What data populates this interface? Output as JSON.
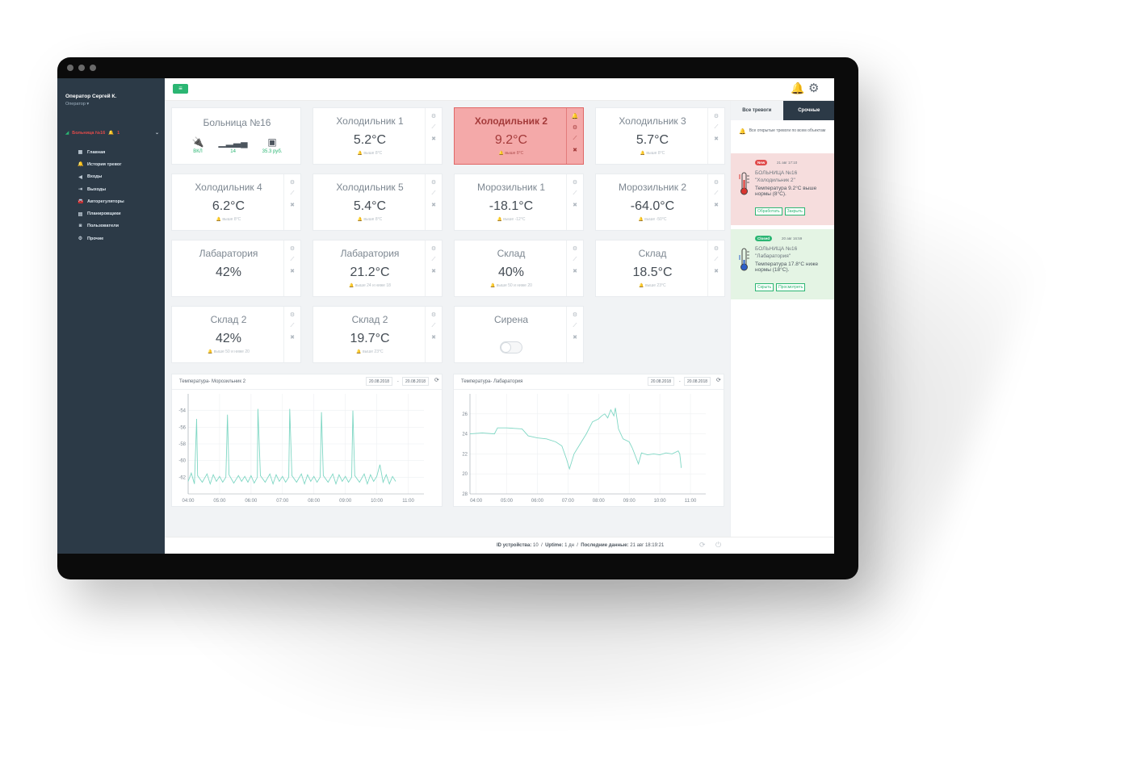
{
  "sidebar": {
    "user_name": "Оператор Сергей К.",
    "user_role": "Оператор ▾",
    "site": {
      "label": "Больница №16",
      "alarm_count": "1"
    },
    "items": [
      {
        "icon": "grid-icon",
        "glyph": "▦",
        "label": "Главная"
      },
      {
        "icon": "bell-icon",
        "glyph": "🔔",
        "label": "История тревог"
      },
      {
        "icon": "input-icon",
        "glyph": "◀",
        "label": "Входы"
      },
      {
        "icon": "output-icon",
        "glyph": "⇥",
        "label": "Выходы"
      },
      {
        "icon": "car-icon",
        "glyph": "🚘",
        "label": "Авторегуляторы"
      },
      {
        "icon": "calendar-icon",
        "glyph": "▤",
        "label": "Планировщики"
      },
      {
        "icon": "users-icon",
        "glyph": "◙",
        "label": "Пользователи"
      },
      {
        "icon": "gear-icon",
        "glyph": "⚙",
        "label": "Прочие"
      }
    ]
  },
  "cards": [
    {
      "title": "Больница №16",
      "type": "hospital",
      "icons": [
        {
          "name": "plug-icon",
          "glyph": "🔌",
          "label": "ВКЛ"
        },
        {
          "name": "signal-icon",
          "glyph": "▁▂▃▄",
          "label": "14"
        },
        {
          "name": "money-icon",
          "glyph": "▣",
          "label": "35.3 руб."
        }
      ]
    },
    {
      "title": "Холодильник 1",
      "value": "5.2°C",
      "sub": "🔔 выше 8°C"
    },
    {
      "title": "Холодильник 2",
      "value": "9.2°C",
      "sub": "🔔 выше 8°C",
      "alert": true
    },
    {
      "title": "Холодильник 3",
      "value": "5.7°C",
      "sub": "🔔 выше 8°C"
    },
    {
      "title": "Холодильник 4",
      "value": "6.2°C",
      "sub": "🔔 выше 8°C"
    },
    {
      "title": "Холодильник 5",
      "value": "5.4°C",
      "sub": "🔔 выше 8°C"
    },
    {
      "title": "Морозильник 1",
      "value": "-18.1°C",
      "sub": "🔔 выше -12°C"
    },
    {
      "title": "Морозильник 2",
      "value": "-64.0°C",
      "sub": "🔔 выше -50°C"
    },
    {
      "title": "Лабаратория",
      "value": "42%",
      "sub": ""
    },
    {
      "title": "Лабаратория",
      "value": "21.2°C",
      "sub": "🔔 выше 24 и ниже 18"
    },
    {
      "title": "Склад",
      "value": "40%",
      "sub": "🔔 выше 50 и ниже 20"
    },
    {
      "title": "Склад",
      "value": "18.5°C",
      "sub": "🔔 выше 23°C"
    },
    {
      "title": "Склад 2",
      "value": "42%",
      "sub": "🔔 выше 50 и ниже 20"
    },
    {
      "title": "Склад 2",
      "value": "19.7°C",
      "sub": "🔔 выше 23°C"
    },
    {
      "title": "Сирена",
      "type": "toggle",
      "toggle_on": false
    }
  ],
  "chart_data": [
    {
      "type": "line",
      "title": "Температура- Морозильник 2",
      "date_from": "20.08.2018",
      "date_to": "20.08.2018",
      "x_ticks": [
        "04:00",
        "05:00",
        "06:00",
        "07:00",
        "08:00",
        "09:00",
        "10:00",
        "11:00"
      ],
      "y_ticks": [
        "-54",
        "-56",
        "-58",
        "-60",
        "-62"
      ],
      "ylim": [
        -64,
        -52
      ],
      "xlim": [
        4.0,
        11.5
      ],
      "color": "#7fd7c4",
      "series": [
        {
          "x": [
            4.0,
            4.1,
            4.2,
            4.27,
            4.3,
            4.45,
            4.6,
            4.7,
            4.8,
            4.9,
            5.0,
            5.1,
            5.2,
            5.25,
            5.3,
            5.45,
            5.6,
            5.7,
            5.8,
            5.9,
            6.0,
            6.1,
            6.2,
            6.22,
            6.3,
            6.45,
            6.6,
            6.7,
            6.8,
            6.9,
            7.0,
            7.1,
            7.2,
            7.23,
            7.3,
            7.45,
            7.6,
            7.7,
            7.8,
            7.9,
            8.0,
            8.1,
            8.2,
            8.24,
            8.3,
            8.45,
            8.6,
            8.7,
            8.8,
            8.9,
            9.0,
            9.1,
            9.2,
            9.24,
            9.3,
            9.45,
            9.6,
            9.7,
            9.8,
            9.9,
            10.0,
            10.1,
            10.2,
            10.3,
            10.4,
            10.5,
            10.6
          ],
          "y": [
            -62.5,
            -61.5,
            -62.8,
            -55.0,
            -61.8,
            -62.6,
            -61.6,
            -62.8,
            -61.7,
            -62.5,
            -61.9,
            -62.6,
            -62.0,
            -54.5,
            -61.7,
            -62.7,
            -61.8,
            -62.5,
            -61.9,
            -62.6,
            -61.8,
            -62.7,
            -62.0,
            -53.8,
            -61.8,
            -62.6,
            -61.6,
            -62.8,
            -61.7,
            -62.5,
            -61.9,
            -62.6,
            -62.0,
            -53.8,
            -61.8,
            -62.6,
            -61.6,
            -62.8,
            -61.7,
            -62.5,
            -61.9,
            -62.6,
            -62.0,
            -54.2,
            -61.8,
            -62.6,
            -61.6,
            -62.8,
            -61.7,
            -62.5,
            -61.9,
            -62.6,
            -62.0,
            -54.0,
            -61.8,
            -62.6,
            -61.6,
            -62.8,
            -61.7,
            -62.5,
            -61.9,
            -60.5,
            -62.6,
            -61.7,
            -62.8,
            -61.9,
            -62.5
          ]
        }
      ]
    },
    {
      "type": "line",
      "title": "Температура- Лабаратория",
      "date_from": "20.08.2018",
      "date_to": "20.08.2018",
      "x_ticks": [
        "04:00",
        "05:00",
        "06:00",
        "07:00",
        "08:00",
        "09:00",
        "10:00",
        "11:00"
      ],
      "y_ticks": [
        "26",
        "24",
        "22",
        "20",
        "28"
      ],
      "ylim": [
        18,
        28
      ],
      "xlim": [
        3.8,
        11.5
      ],
      "color": "#7fd7c4",
      "series": [
        {
          "x": [
            3.8,
            4.2,
            4.6,
            4.7,
            5.0,
            5.5,
            5.7,
            6.0,
            6.3,
            6.6,
            6.8,
            6.95,
            7.05,
            7.2,
            7.4,
            7.6,
            7.8,
            8.0,
            8.1,
            8.2,
            8.3,
            8.4,
            8.5,
            8.55,
            8.65,
            8.8,
            9.0,
            9.1,
            9.2,
            9.3,
            9.4,
            9.6,
            9.8,
            10.0,
            10.2,
            10.4,
            10.6,
            10.65,
            10.7
          ],
          "y": [
            24.0,
            24.1,
            24.0,
            24.6,
            24.6,
            24.5,
            23.8,
            23.6,
            23.5,
            23.2,
            22.8,
            21.5,
            20.5,
            22.0,
            23.0,
            24.0,
            25.2,
            25.5,
            25.8,
            26.0,
            25.6,
            26.4,
            25.8,
            26.6,
            24.5,
            23.5,
            23.2,
            22.6,
            21.8,
            21.0,
            22.1,
            21.9,
            22.0,
            21.9,
            22.1,
            22.0,
            22.3,
            22.0,
            20.6
          ]
        }
      ]
    }
  ],
  "footer": {
    "device_label": "ID устройства:",
    "device_id": "10",
    "uptime_label": "Uptime:",
    "uptime": "1 дн",
    "last_label": "Последние данные:",
    "last": "21 авг 18:19:21"
  },
  "alerts": {
    "tab_all": "Все тревоги",
    "tab_urgent": "Срочные",
    "all_open": "Все открытые тревоги по всем объектам",
    "items": [
      {
        "status": "New",
        "time": "21 авг 17:10",
        "site": "БОЛЬНИЦА №16",
        "object": "\"Холодильник 2\"",
        "message": "Температура 9.2°C выше нормы (8°C).",
        "buttons": [
          "Обработать",
          "Закрыть"
        ]
      },
      {
        "status": "Closed",
        "time": "20 авг 16:59",
        "site": "БОЛЬНИЦА №16",
        "object": "\"Лабаратория\"",
        "message": "Температура 17.8°C ниже нормы (18°C).",
        "buttons": [
          "Скрыть",
          "Просмотреть"
        ]
      }
    ]
  }
}
